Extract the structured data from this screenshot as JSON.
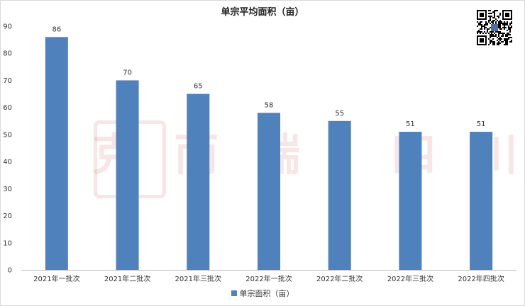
{
  "chart_data": {
    "type": "bar",
    "title": "单宗平均面积（亩）",
    "categories": [
      "2021年一批次",
      "2021年二批次",
      "2021年三批次",
      "2022年一批次",
      "2022年二批次",
      "2022年三批次",
      "2022年四批次"
    ],
    "series": [
      {
        "name": "单宗面积（亩）",
        "values": [
          86,
          70,
          65,
          58,
          55,
          51,
          51
        ],
        "color": "#4f81bd"
      }
    ],
    "ylim": [
      0,
      90
    ],
    "yticks": [
      0,
      10,
      20,
      30,
      40,
      50,
      60,
      70,
      80,
      90
    ],
    "grid": false,
    "legend_position": "bottom"
  },
  "watermark": {
    "text": "克 而 瑞 · 四 川"
  }
}
